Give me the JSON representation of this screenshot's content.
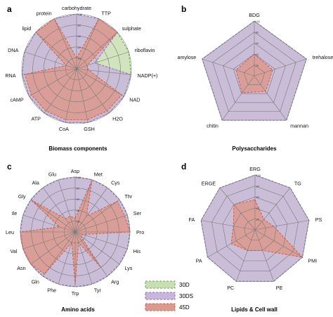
{
  "figure": {
    "colors": {
      "grid": "#7a7a7a",
      "s30D_fill": "#c9dfb3",
      "s30D_stroke": "#6aa84f",
      "s30DS_fill": "#c8b6dc",
      "s30DS_stroke": "#8e72b6",
      "s45D_fill": "#d99a90",
      "s45D_stroke": "#d6604d"
    },
    "legend_position": "bottom-center",
    "legend": [
      "30D",
      "30DS",
      "45D"
    ]
  },
  "chart_data": [
    {
      "panel": "a",
      "type": "radar",
      "title": "Biomass components",
      "rmax": 100,
      "ticks": [
        20,
        40,
        60,
        80,
        100
      ],
      "grid_shape": "circle",
      "categories": [
        "carbohydrate",
        "TTP",
        "sulphate",
        "riboflavin",
        "NADP(+)",
        "NAD",
        "H2O",
        "GSH",
        "CoA",
        "ATP",
        "cAMP",
        "RNA",
        "DNA",
        "lipid",
        "protein"
      ],
      "series": [
        {
          "name": "30D",
          "values": [
            100,
            100,
            100,
            100,
            100,
            100,
            100,
            100,
            100,
            100,
            100,
            100,
            100,
            100,
            100
          ]
        },
        {
          "name": "30DS",
          "values": [
            100,
            100,
            100,
            35,
            100,
            100,
            100,
            100,
            100,
            100,
            100,
            100,
            100,
            100,
            100
          ]
        },
        {
          "name": "45D",
          "values": [
            20,
            100,
            100,
            20,
            22,
            95,
            95,
            95,
            95,
            95,
            95,
            95,
            20,
            100,
            100
          ]
        }
      ]
    },
    {
      "panel": "b",
      "type": "radar",
      "title": "Polysaccharides",
      "rmax": 100,
      "ticks": [
        20,
        40,
        60,
        80,
        100
      ],
      "grid_shape": "polygon",
      "categories": [
        "BDG",
        "trehalose",
        "mannan",
        "chitin",
        "amylose"
      ],
      "series": [
        {
          "name": "30D",
          "values": [
            100,
            100,
            100,
            100,
            100
          ]
        },
        {
          "name": "30DS",
          "values": [
            100,
            100,
            100,
            100,
            100
          ]
        },
        {
          "name": "45D",
          "values": [
            40,
            35,
            35,
            38,
            35
          ]
        }
      ]
    },
    {
      "panel": "c",
      "type": "radar",
      "title": "Amino acids",
      "rmax": 100,
      "ticks": [
        20,
        40,
        60,
        80,
        100
      ],
      "grid_shape": "circle",
      "categories": [
        "Asp",
        "Met",
        "Cys",
        "Thr",
        "Ser",
        "Pro",
        "His",
        "Lys",
        "Arg",
        "Tyr",
        "Trp",
        "Phe",
        "Gln",
        "Asn",
        "Val",
        "Leu",
        "Ile",
        "Gly",
        "Ala",
        "Glu"
      ],
      "series": [
        {
          "name": "30D",
          "values": [
            100,
            100,
            100,
            100,
            100,
            100,
            100,
            100,
            100,
            100,
            100,
            100,
            100,
            100,
            100,
            100,
            100,
            100,
            100,
            100
          ]
        },
        {
          "name": "30DS",
          "values": [
            100,
            100,
            100,
            100,
            100,
            100,
            100,
            100,
            100,
            100,
            100,
            100,
            100,
            100,
            100,
            100,
            100,
            100,
            100,
            100
          ]
        },
        {
          "name": "45D",
          "values": [
            25,
            100,
            35,
            95,
            95,
            100,
            15,
            12,
            80,
            20,
            95,
            20,
            95,
            100,
            100,
            100,
            30,
            100,
            30,
            30
          ]
        }
      ]
    },
    {
      "panel": "d",
      "type": "radar",
      "title": "Lipids & Cell wall",
      "rmax": 100,
      "ticks": [
        20,
        40,
        60,
        80,
        100
      ],
      "grid_shape": "polygon",
      "categories": [
        "ERG",
        "TG",
        "PS",
        "PMI",
        "PE",
        "PC",
        "PA",
        "FA",
        "ERGE"
      ],
      "series": [
        {
          "name": "30D",
          "values": [
            100,
            100,
            100,
            100,
            100,
            100,
            100,
            100,
            100
          ]
        },
        {
          "name": "30DS",
          "values": [
            100,
            100,
            100,
            100,
            100,
            100,
            100,
            100,
            100
          ]
        },
        {
          "name": "45D",
          "values": [
            55,
            25,
            35,
            100,
            40,
            40,
            50,
            40,
            60
          ]
        }
      ]
    }
  ]
}
